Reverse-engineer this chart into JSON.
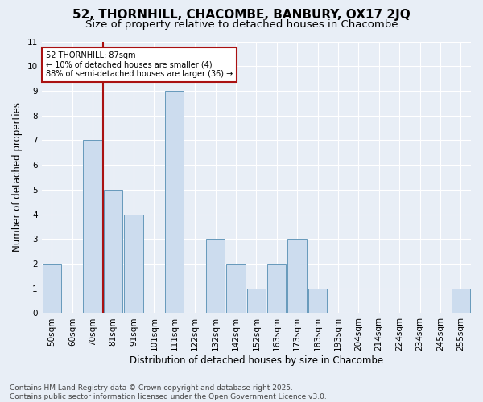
{
  "title": "52, THORNHILL, CHACOMBE, BANBURY, OX17 2JQ",
  "subtitle": "Size of property relative to detached houses in Chacombe",
  "xlabel": "Distribution of detached houses by size in Chacombe",
  "ylabel": "Number of detached properties",
  "footer_line1": "Contains HM Land Registry data © Crown copyright and database right 2025.",
  "footer_line2": "Contains public sector information licensed under the Open Government Licence v3.0.",
  "categories": [
    "50sqm",
    "60sqm",
    "70sqm",
    "81sqm",
    "91sqm",
    "101sqm",
    "111sqm",
    "122sqm",
    "132sqm",
    "142sqm",
    "152sqm",
    "163sqm",
    "173sqm",
    "183sqm",
    "193sqm",
    "204sqm",
    "214sqm",
    "224sqm",
    "234sqm",
    "245sqm",
    "255sqm"
  ],
  "values": [
    2,
    0,
    7,
    5,
    4,
    0,
    9,
    0,
    3,
    2,
    1,
    2,
    3,
    1,
    0,
    0,
    0,
    0,
    0,
    0,
    1
  ],
  "bar_color": "#ccdcee",
  "bar_edge_color": "#6699bb",
  "red_line_x": 2.5,
  "red_line_color": "#aa1111",
  "annotation_text": "52 THORNHILL: 87sqm\n← 10% of detached houses are smaller (4)\n88% of semi-detached houses are larger (36) →",
  "annotation_box_color": "#ffffff",
  "annotation_box_edge": "#aa1111",
  "ylim": [
    0,
    11
  ],
  "yticks": [
    0,
    1,
    2,
    3,
    4,
    5,
    6,
    7,
    8,
    9,
    10,
    11
  ],
  "background_color": "#e8eef6",
  "plot_bg_color": "#e8eef6",
  "grid_color": "#ffffff",
  "title_fontsize": 11,
  "subtitle_fontsize": 9.5,
  "tick_fontsize": 7.5,
  "ylabel_fontsize": 8.5,
  "xlabel_fontsize": 8.5,
  "footer_fontsize": 6.5
}
